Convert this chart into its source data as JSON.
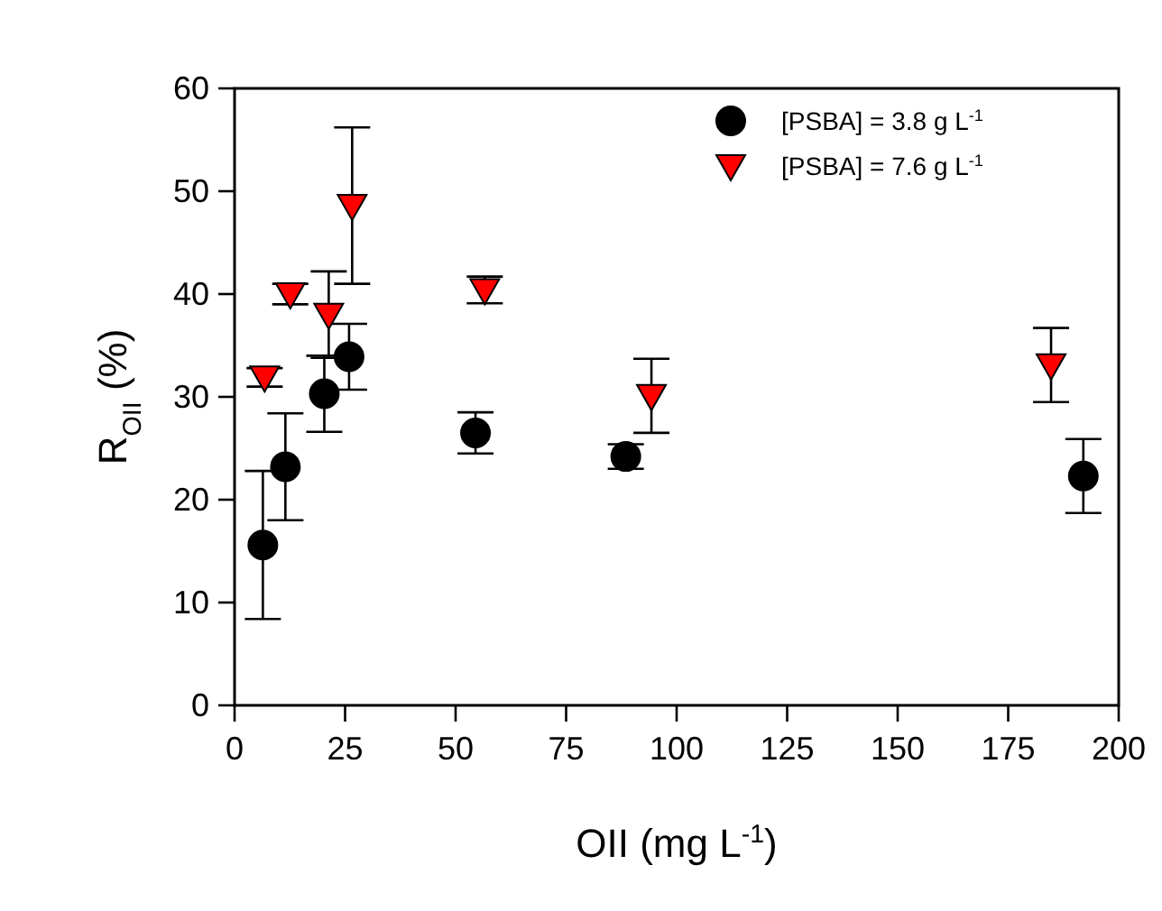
{
  "chart_data": {
    "type": "scatter",
    "xlabel": "OII (mg L$^{-1}$)",
    "ylabel": "R$_{OII}$ (%)",
    "xlim": [
      0,
      200
    ],
    "xticks": [
      0,
      25,
      50,
      75,
      100,
      125,
      150,
      175,
      200
    ],
    "ylim": [
      0,
      60
    ],
    "yticks": [
      0,
      10,
      20,
      30,
      40,
      50,
      60
    ],
    "grid": false,
    "legend": "top right",
    "series": [
      {
        "name": "[PSBA] = 3.8 g L$^{-1}$",
        "color": "#000000",
        "marker": "circle",
        "x": [
          6.4,
          11.5,
          20.3,
          25.9,
          54.5,
          88.5,
          192
        ],
        "values": [
          15.6,
          23.2,
          30.3,
          33.9,
          26.5,
          24.2,
          22.3
        ],
        "errors": [
          7.2,
          5.2,
          3.7,
          3.2,
          2,
          1.2,
          3.6
        ]
      },
      {
        "name": "[PSBA] = 7.6 g L$^{-1}$",
        "color": "#ff0000",
        "marker": "triangle",
        "x": [
          6.8,
          12.6,
          21.3,
          26.6,
          56.6,
          94.3,
          184.7
        ],
        "values": [
          31.9,
          40,
          38,
          48.6,
          40.4,
          30.1,
          33.1
        ],
        "errors": [
          0.9,
          1,
          4.2,
          7.6,
          1.3,
          3.6,
          3.6
        ]
      }
    ]
  }
}
